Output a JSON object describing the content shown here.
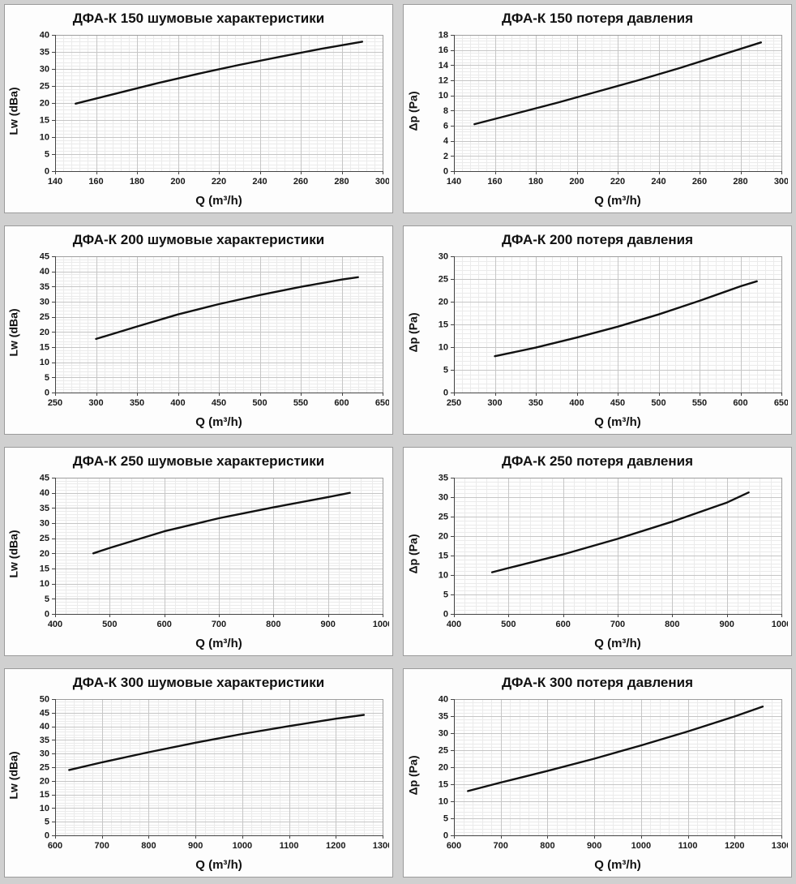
{
  "page": {
    "background": "#d0d0d0",
    "panel_background": "#fdfdfd",
    "panel_border": "#9b9b9b"
  },
  "colors": {
    "curve": "#111111",
    "major_grid": "#c6c6c6",
    "minor_grid": "#ebebeb",
    "frame": "#9e9e9e",
    "axis": "#444444",
    "text": "#1a1a1a"
  },
  "grid_style": {
    "minor_divisions_per_major": 5,
    "grid_on": true,
    "legend": "none"
  },
  "chart_data": [
    {
      "type": "line",
      "product": "ДФА-К 150",
      "measure": "noise",
      "title": "ДФА-К 150 шумовые характеристики",
      "xlabel": "Q (m³/h)",
      "ylabel": "Lw (dBa)",
      "xlim": [
        140,
        300
      ],
      "ylim": [
        0,
        40
      ],
      "xticks": [
        140,
        160,
        180,
        200,
        220,
        240,
        260,
        280,
        300
      ],
      "yticks": [
        0,
        5,
        10,
        15,
        20,
        25,
        30,
        35,
        40
      ],
      "x": [
        150,
        170,
        190,
        210,
        230,
        250,
        270,
        290
      ],
      "y": [
        19.8,
        22.8,
        25.8,
        28.6,
        31.2,
        33.6,
        35.9,
        38
      ]
    },
    {
      "type": "line",
      "product": "ДФА-К 150",
      "measure": "pressure-loss",
      "title": "ДФА-К 150 потеря давления",
      "xlabel": "Q (m³/h)",
      "ylabel": "Δp (Pa)",
      "xlim": [
        140,
        300
      ],
      "ylim": [
        0,
        18
      ],
      "xticks": [
        140,
        160,
        180,
        200,
        220,
        240,
        260,
        280,
        300
      ],
      "yticks": [
        0,
        2,
        4,
        6,
        8,
        10,
        12,
        14,
        16,
        18
      ],
      "x": [
        150,
        170,
        190,
        210,
        230,
        250,
        270,
        290
      ],
      "y": [
        6.2,
        7.6,
        9.0,
        10.5,
        12.0,
        13.6,
        15.3,
        17.0
      ]
    },
    {
      "type": "line",
      "product": "ДФА-К 200",
      "measure": "noise",
      "title": "ДФА-К 200 шумовые характеристики",
      "xlabel": "Q (m³/h)",
      "ylabel": "Lw (dBa)",
      "xlim": [
        250,
        650
      ],
      "ylim": [
        0,
        45
      ],
      "xticks": [
        250,
        300,
        350,
        400,
        450,
        500,
        550,
        600,
        650
      ],
      "yticks": [
        0,
        5,
        10,
        15,
        20,
        25,
        30,
        35,
        40,
        45
      ],
      "x": [
        300,
        350,
        400,
        450,
        500,
        550,
        600,
        620
      ],
      "y": [
        17.7,
        21.8,
        25.8,
        29.2,
        32.2,
        34.9,
        37.3,
        38.1
      ]
    },
    {
      "type": "line",
      "product": "ДФА-К 200",
      "measure": "pressure-loss",
      "title": "ДФА-К 200 потеря давления",
      "xlabel": "Q (m³/h)",
      "ylabel": "Δp (Pa)",
      "xlim": [
        250,
        650
      ],
      "ylim": [
        0,
        30
      ],
      "xticks": [
        250,
        300,
        350,
        400,
        450,
        500,
        550,
        600,
        650
      ],
      "yticks": [
        0,
        5,
        10,
        15,
        20,
        25,
        30
      ],
      "x": [
        300,
        350,
        400,
        450,
        500,
        550,
        600,
        620
      ],
      "y": [
        8.0,
        9.9,
        12.1,
        14.5,
        17.2,
        20.2,
        23.4,
        24.5
      ]
    },
    {
      "type": "line",
      "product": "ДФА-К 250",
      "measure": "noise",
      "title": "ДФА-К 250 шумовые характеристики",
      "xlabel": "Q (m³/h)",
      "ylabel": "Lw (dBa)",
      "xlim": [
        400,
        1000
      ],
      "ylim": [
        0,
        45
      ],
      "xticks": [
        400,
        500,
        600,
        700,
        800,
        900,
        1000
      ],
      "yticks": [
        0,
        5,
        10,
        15,
        20,
        25,
        30,
        35,
        40,
        45
      ],
      "x": [
        470,
        500,
        600,
        700,
        800,
        900,
        940
      ],
      "y": [
        20.0,
        21.8,
        27.3,
        31.6,
        35.2,
        38.6,
        40.0
      ]
    },
    {
      "type": "line",
      "product": "ДФА-К 250",
      "measure": "pressure-loss",
      "title": "ДФА-К 250 потеря давления",
      "xlabel": "Q (m³/h)",
      "ylabel": "Δp (Pa)",
      "xlim": [
        400,
        1000
      ],
      "ylim": [
        0,
        35
      ],
      "xticks": [
        400,
        500,
        600,
        700,
        800,
        900,
        1000
      ],
      "yticks": [
        0,
        5,
        10,
        15,
        20,
        25,
        30,
        35
      ],
      "x": [
        470,
        500,
        600,
        700,
        800,
        900,
        940
      ],
      "y": [
        10.7,
        11.8,
        15.3,
        19.3,
        23.7,
        28.6,
        31.2
      ]
    },
    {
      "type": "line",
      "product": "ДФА-К 300",
      "measure": "noise",
      "title": "ДФА-К 300 шумовые характеристики",
      "xlabel": "Q (m³/h)",
      "ylabel": "Lw (dBa)",
      "xlim": [
        600,
        1300
      ],
      "ylim": [
        0,
        50
      ],
      "xticks": [
        600,
        700,
        800,
        900,
        1000,
        1100,
        1200,
        1300
      ],
      "yticks": [
        0,
        5,
        10,
        15,
        20,
        25,
        30,
        35,
        40,
        45,
        50
      ],
      "x": [
        630,
        700,
        800,
        900,
        1000,
        1100,
        1200,
        1260
      ],
      "y": [
        24.0,
        26.8,
        30.5,
        34.0,
        37.2,
        40.1,
        42.8,
        44.2
      ]
    },
    {
      "type": "line",
      "product": "ДФА-К 300",
      "measure": "pressure-loss",
      "title": "ДФА-К 300 потеря давления",
      "xlabel": "Q (m³/h)",
      "ylabel": "Δp (Pa)",
      "xlim": [
        600,
        1300
      ],
      "ylim": [
        0,
        40
      ],
      "xticks": [
        600,
        700,
        800,
        900,
        1000,
        1100,
        1200,
        1300
      ],
      "yticks": [
        0,
        5,
        10,
        15,
        20,
        25,
        30,
        35,
        40
      ],
      "x": [
        630,
        700,
        800,
        900,
        1000,
        1100,
        1200,
        1260
      ],
      "y": [
        13.0,
        15.5,
        18.9,
        22.5,
        26.4,
        30.5,
        34.9,
        37.8
      ]
    }
  ]
}
